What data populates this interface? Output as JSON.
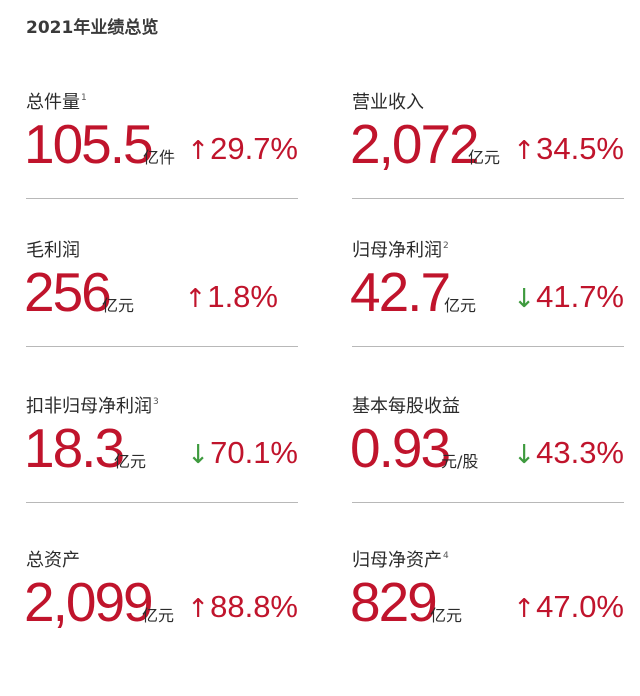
{
  "title": "2021年业绩总览",
  "metrics": [
    {
      "label": "总件量",
      "note": "1",
      "value": "105.5",
      "unit": "亿件",
      "direction": "up",
      "change": "29.7%"
    },
    {
      "label": "营业收入",
      "note": "",
      "value": "2,072",
      "unit": "亿元",
      "direction": "up",
      "change": "34.5%"
    },
    {
      "label": "毛利润",
      "note": "",
      "value": "256",
      "unit": "亿元",
      "direction": "up",
      "change": "1.8%"
    },
    {
      "label": "归母净利润",
      "note": "2",
      "value": "42.7",
      "unit": "亿元",
      "direction": "down",
      "change": "41.7%"
    },
    {
      "label": "扣非归母净利润",
      "note": "3",
      "value": "18.3",
      "unit": "亿元",
      "direction": "down",
      "change": "70.1%"
    },
    {
      "label": "基本每股收益",
      "note": "",
      "value": "0.93",
      "unit": "元/股",
      "direction": "down",
      "change": "43.3%"
    },
    {
      "label": "总资产",
      "note": "",
      "value": "2,099",
      "unit": "亿元",
      "direction": "up",
      "change": "88.8%"
    },
    {
      "label": "归母净资产",
      "note": "4",
      "value": "829",
      "unit": "亿元",
      "direction": "up",
      "change": "47.0%"
    }
  ],
  "arrows": {
    "up": "↑",
    "down": "↓"
  },
  "colors": {
    "value": "#c0142c",
    "up": "#c0142c",
    "down": "#3e9a3e",
    "divider": "#b8b8b8"
  }
}
